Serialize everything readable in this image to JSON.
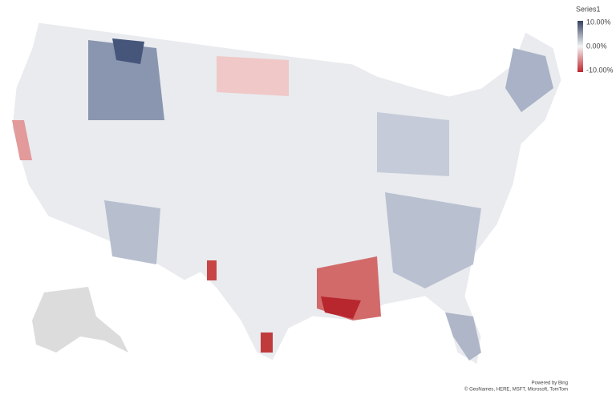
{
  "legend": {
    "title": "Series1",
    "ticks": [
      {
        "value": 10,
        "label": "10.00%"
      },
      {
        "value": 0,
        "label": "0.00%"
      },
      {
        "value": -10,
        "label": "-10.00%"
      }
    ],
    "range": [
      -10,
      10
    ],
    "colors": {
      "max": "#34425f",
      "mid": "#f4f4f6",
      "min": "#c0262d"
    }
  },
  "attribution": {
    "powered": "Powered by Bing",
    "credits": "© GeoNames, HERE, MSFT, Microsoft, TomTom"
  }
}
